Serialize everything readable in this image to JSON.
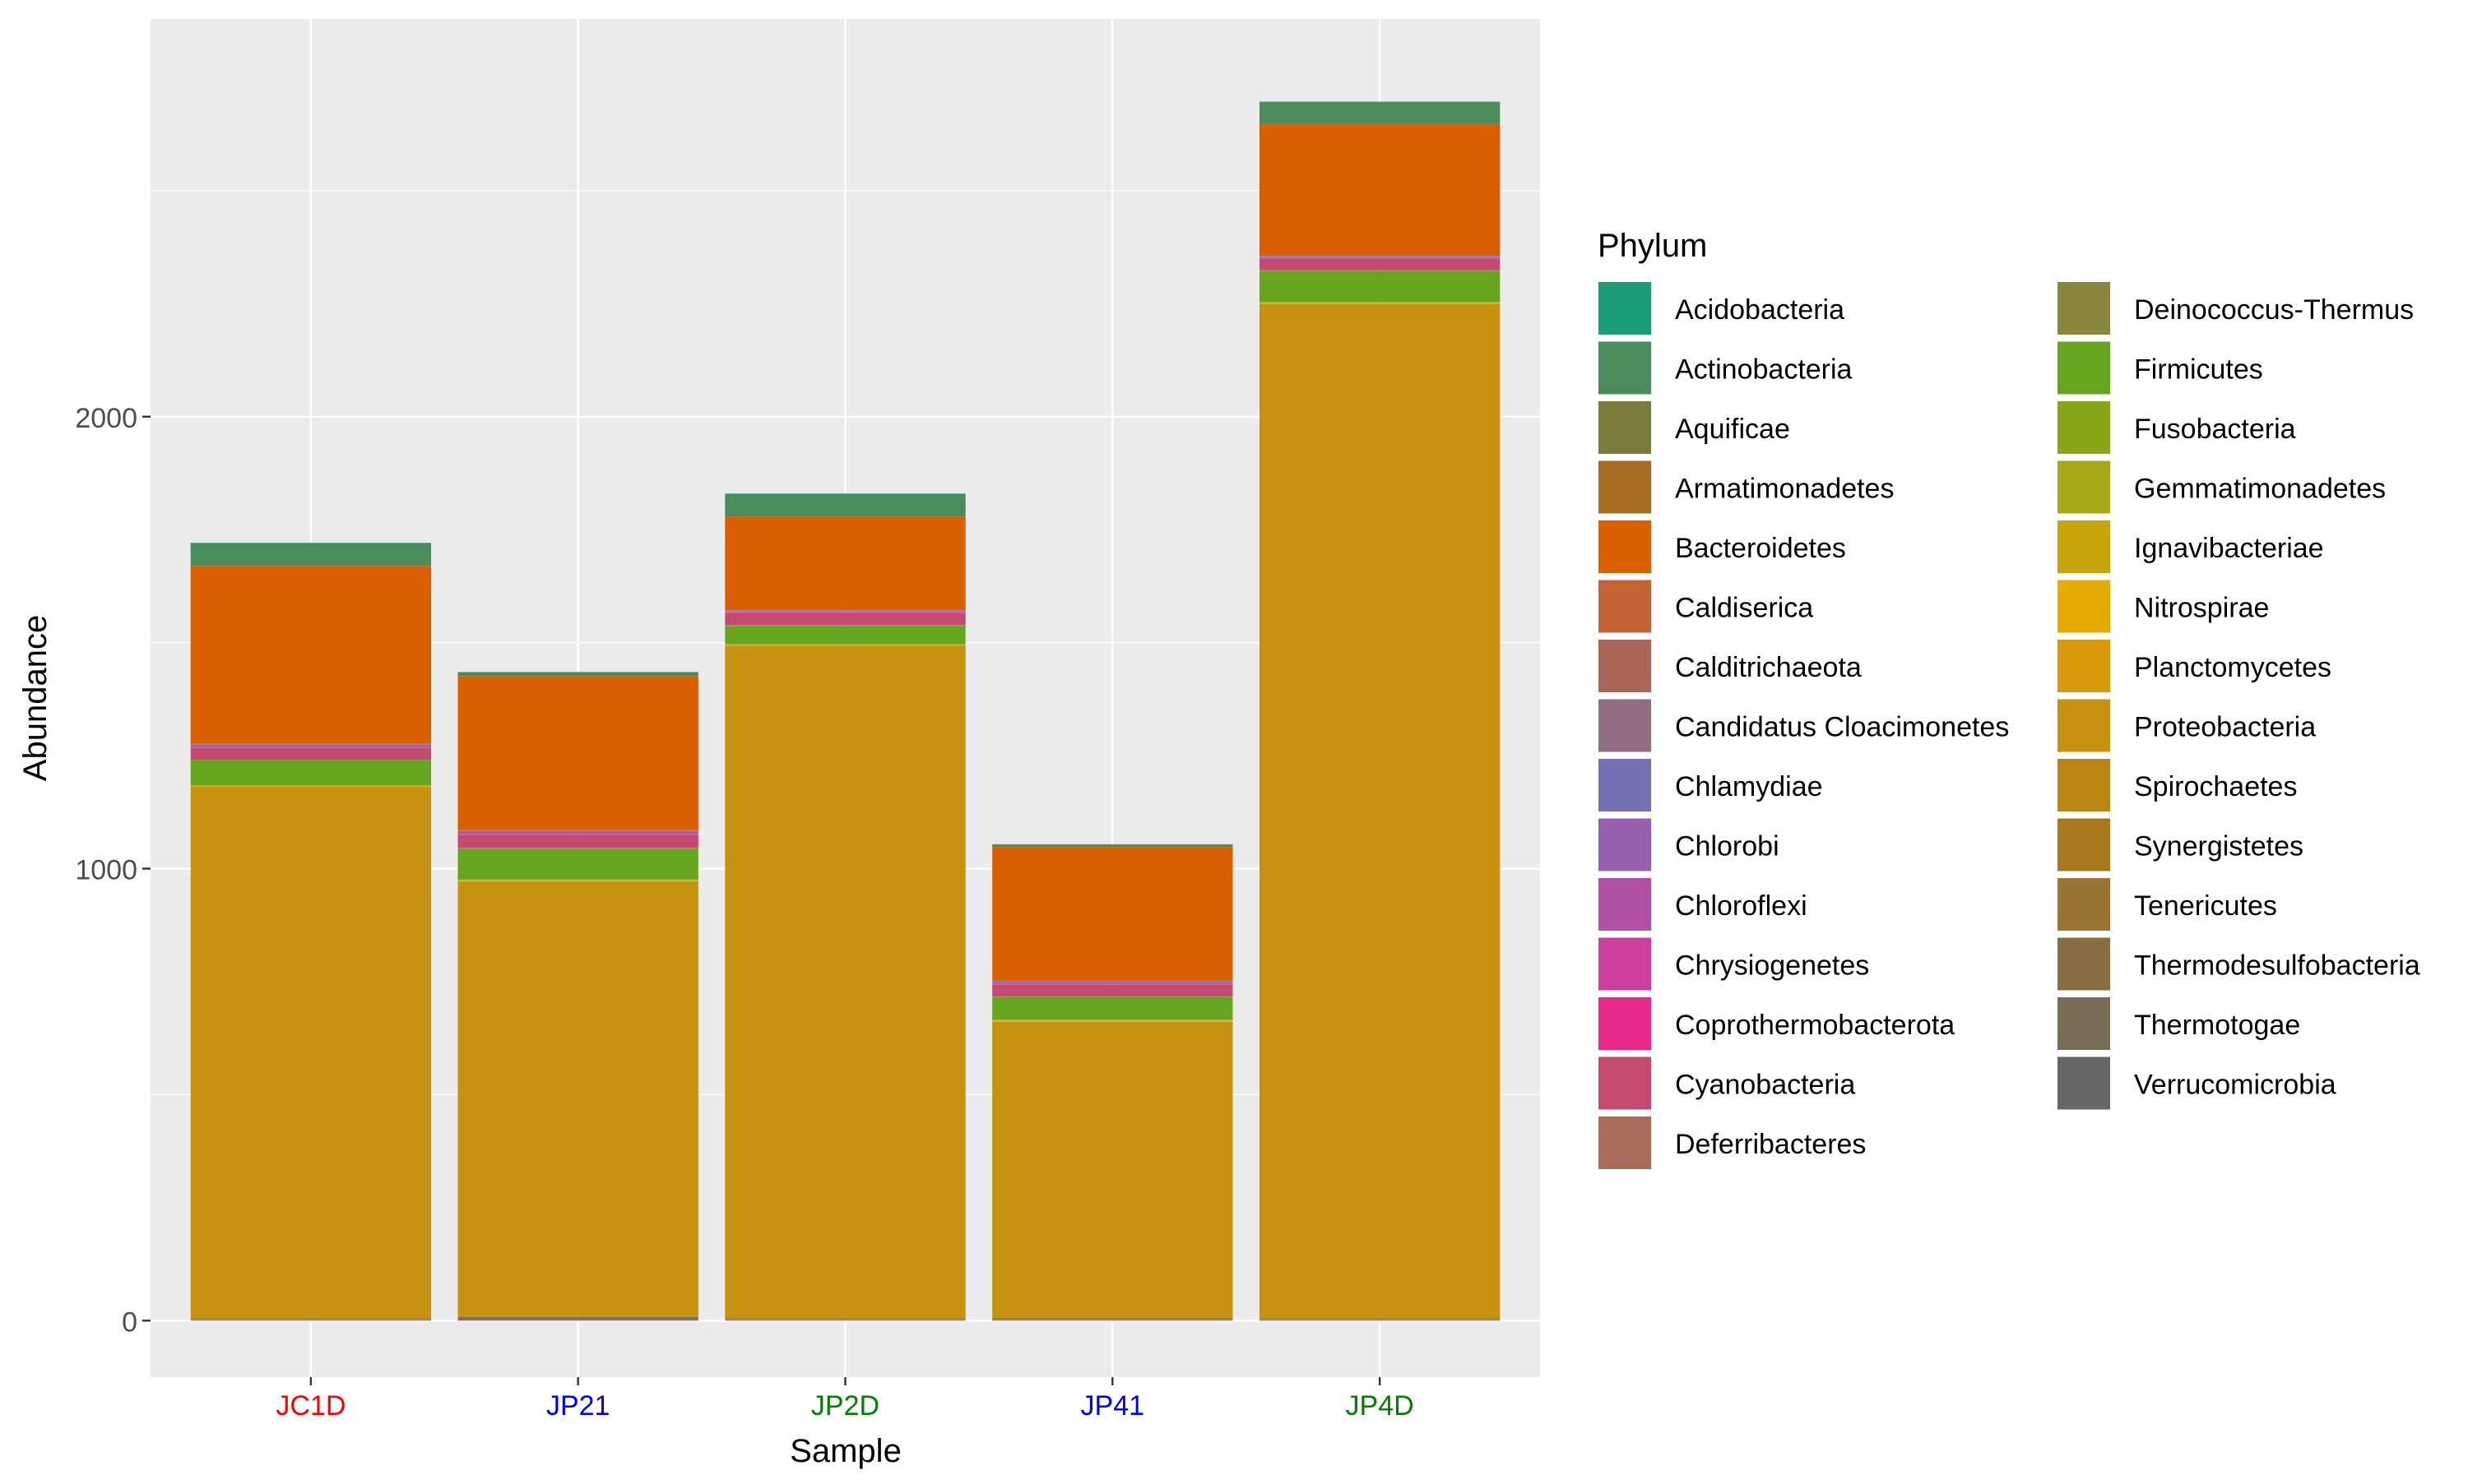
{
  "chart_data": {
    "type": "bar",
    "stacked": true,
    "xlabel": "Sample",
    "ylabel": "Abundance",
    "ylim": [
      -125,
      2880
    ],
    "yticks": [
      0,
      1000,
      2000
    ],
    "ytick_labels": [
      "0",
      "1000",
      "2000"
    ],
    "grid": true,
    "legend_position": "right",
    "legend_title": "Phylum",
    "categories": [
      "JC1D",
      "JP21",
      "JP2D",
      "JP41",
      "JP4D"
    ],
    "category_colors": [
      "#FF0000",
      "#0000FF",
      "#008000",
      "#0000FF",
      "#008000"
    ],
    "series": [
      {
        "name": "Acidobacteria",
        "color": "#1B9E77",
        "values": [
          1,
          1,
          1,
          1,
          1
        ]
      },
      {
        "name": "Actinobacteria",
        "color": "#4A8C5C",
        "values": [
          50,
          8,
          50,
          5,
          48
        ]
      },
      {
        "name": "Aquificae",
        "color": "#7A7A3C",
        "values": [
          0,
          0,
          0,
          0,
          0
        ]
      },
      {
        "name": "Armatimonadetes",
        "color": "#A86C22",
        "values": [
          0,
          0,
          0,
          0,
          0
        ]
      },
      {
        "name": "Bacteroidetes",
        "color": "#D95F02",
        "values": [
          393,
          340,
          205,
          295,
          290
        ]
      },
      {
        "name": "Caldiserica",
        "color": "#C36335",
        "values": [
          2,
          2,
          2,
          2,
          2
        ]
      },
      {
        "name": "Calditrichaeota",
        "color": "#AA6659",
        "values": [
          1,
          1,
          1,
          1,
          1
        ]
      },
      {
        "name": "Candidatus Cloacimonetes",
        "color": "#916D84",
        "values": [
          1,
          1,
          1,
          1,
          1
        ]
      },
      {
        "name": "Chlamydiae",
        "color": "#7570B3",
        "values": [
          1,
          1,
          1,
          1,
          1
        ]
      },
      {
        "name": "Chlorobi",
        "color": "#9660AE",
        "values": [
          1,
          1,
          1,
          1,
          1
        ]
      },
      {
        "name": "Chloroflexi",
        "color": "#B24FA6",
        "values": [
          2,
          3,
          2,
          2,
          2
        ]
      },
      {
        "name": "Chrysiogenetes",
        "color": "#CE3E9D",
        "values": [
          1,
          1,
          1,
          1,
          1
        ]
      },
      {
        "name": "Coprothermobacterota",
        "color": "#E7298A",
        "values": [
          1,
          1,
          1,
          1,
          1
        ]
      },
      {
        "name": "Cyanobacteria",
        "color": "#C54A6F",
        "values": [
          25,
          29,
          25,
          25,
          24
        ]
      },
      {
        "name": "Deferribacteres",
        "color": "#A96C5B",
        "values": [
          1,
          1,
          1,
          1,
          1
        ]
      },
      {
        "name": "Deinococcus-Thermus",
        "color": "#8A863E",
        "values": [
          1,
          1,
          1,
          1,
          1
        ]
      },
      {
        "name": "Firmicutes",
        "color": "#66A61E",
        "values": [
          55,
          68,
          40,
          50,
          68
        ]
      },
      {
        "name": "Fusobacteria",
        "color": "#88A51A",
        "values": [
          1,
          1,
          1,
          1,
          1
        ]
      },
      {
        "name": "Gemmatimonadetes",
        "color": "#A8A714",
        "values": [
          1,
          1,
          1,
          1,
          1
        ]
      },
      {
        "name": "Ignavibacteriae",
        "color": "#C8A60B",
        "values": [
          1,
          1,
          1,
          1,
          1
        ]
      },
      {
        "name": "Nitrospirae",
        "color": "#E6AB02",
        "values": [
          1,
          1,
          1,
          1,
          1
        ]
      },
      {
        "name": "Planctomycetes",
        "color": "#D89A0B",
        "values": [
          1,
          1,
          1,
          1,
          1
        ]
      },
      {
        "name": "Proteobacteria",
        "color": "#C69210",
        "values": [
          1174,
          960,
          1486,
          654,
          2243
        ]
      },
      {
        "name": "Spirochaetes",
        "color": "#B98515",
        "values": [
          1,
          1,
          1,
          1,
          1
        ]
      },
      {
        "name": "Synergistetes",
        "color": "#A8781C",
        "values": [
          1,
          1,
          1,
          1,
          1
        ]
      },
      {
        "name": "Tenericutes",
        "color": "#9A7430",
        "values": [
          1,
          3,
          1,
          2,
          1
        ]
      },
      {
        "name": "Thermodesulfobacteria",
        "color": "#876F41",
        "values": [
          1,
          2,
          1,
          1,
          1
        ]
      },
      {
        "name": "Thermotogae",
        "color": "#776D55",
        "values": [
          1,
          2,
          1,
          1,
          1
        ]
      },
      {
        "name": "Verrucomicrobia",
        "color": "#666666",
        "values": [
          1,
          2,
          1,
          1,
          1
        ]
      }
    ]
  }
}
